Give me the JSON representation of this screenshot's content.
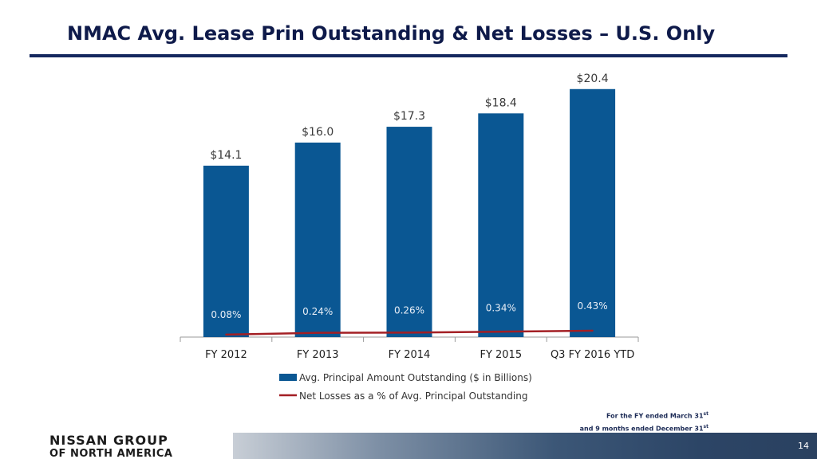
{
  "title": "NMAC Avg. Lease Prin Outstanding & Net Losses – U.S. Only",
  "chart_data": {
    "type": "bar",
    "categories": [
      "FY 2012",
      "FY 2013",
      "FY 2014",
      "FY 2015",
      "Q3 FY 2016 YTD"
    ],
    "series": [
      {
        "name": "Avg. Principal Amount Outstanding ($ in Billions)",
        "type": "bar",
        "values": [
          14.1,
          16.0,
          17.3,
          18.4,
          20.4
        ],
        "labels": [
          "$14.1",
          "$16.0",
          "$17.3",
          "$18.4",
          "$20.4"
        ],
        "color": "#0a5793"
      },
      {
        "name": "Net Losses as a % of Avg. Principal Outstanding",
        "type": "line",
        "values": [
          0.08,
          0.24,
          0.26,
          0.34,
          0.43
        ],
        "labels": [
          "0.08%",
          "0.24%",
          "0.26%",
          "0.34%",
          "0.43%"
        ],
        "color": "#a31f24"
      }
    ],
    "ylim": [
      0,
      21.5
    ],
    "line_ylim": [
      0,
      10
    ],
    "legend": "bottom",
    "grid": false
  },
  "footnote": {
    "line1": "For the FY ended March 31",
    "line1_sup": "st",
    "line2": "and 9 months ended December 31",
    "line2_sup": "st"
  },
  "logo": {
    "line1": "NISSAN GROUP",
    "line2": "OF NORTH AMERICA"
  },
  "page_number": "14"
}
